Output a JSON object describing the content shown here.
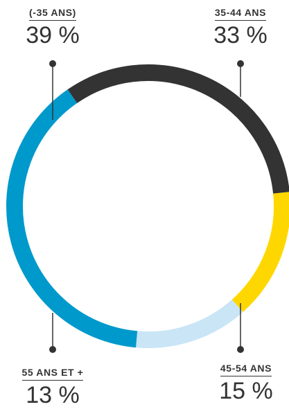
{
  "chart_data": {
    "type": "pie",
    "donut": true,
    "categories": [
      "(-35 ANS)",
      "35-44 ANS",
      "45-54 ANS",
      "55 ANS ET +"
    ],
    "values": [
      39,
      33,
      15,
      13
    ],
    "value_labels": [
      "39 %",
      "33 %",
      "15 %",
      "13 %"
    ],
    "colors": [
      "#0099CC",
      "#333333",
      "#FFD700",
      "#C9E5F6"
    ],
    "legend": "callout-labels"
  }
}
